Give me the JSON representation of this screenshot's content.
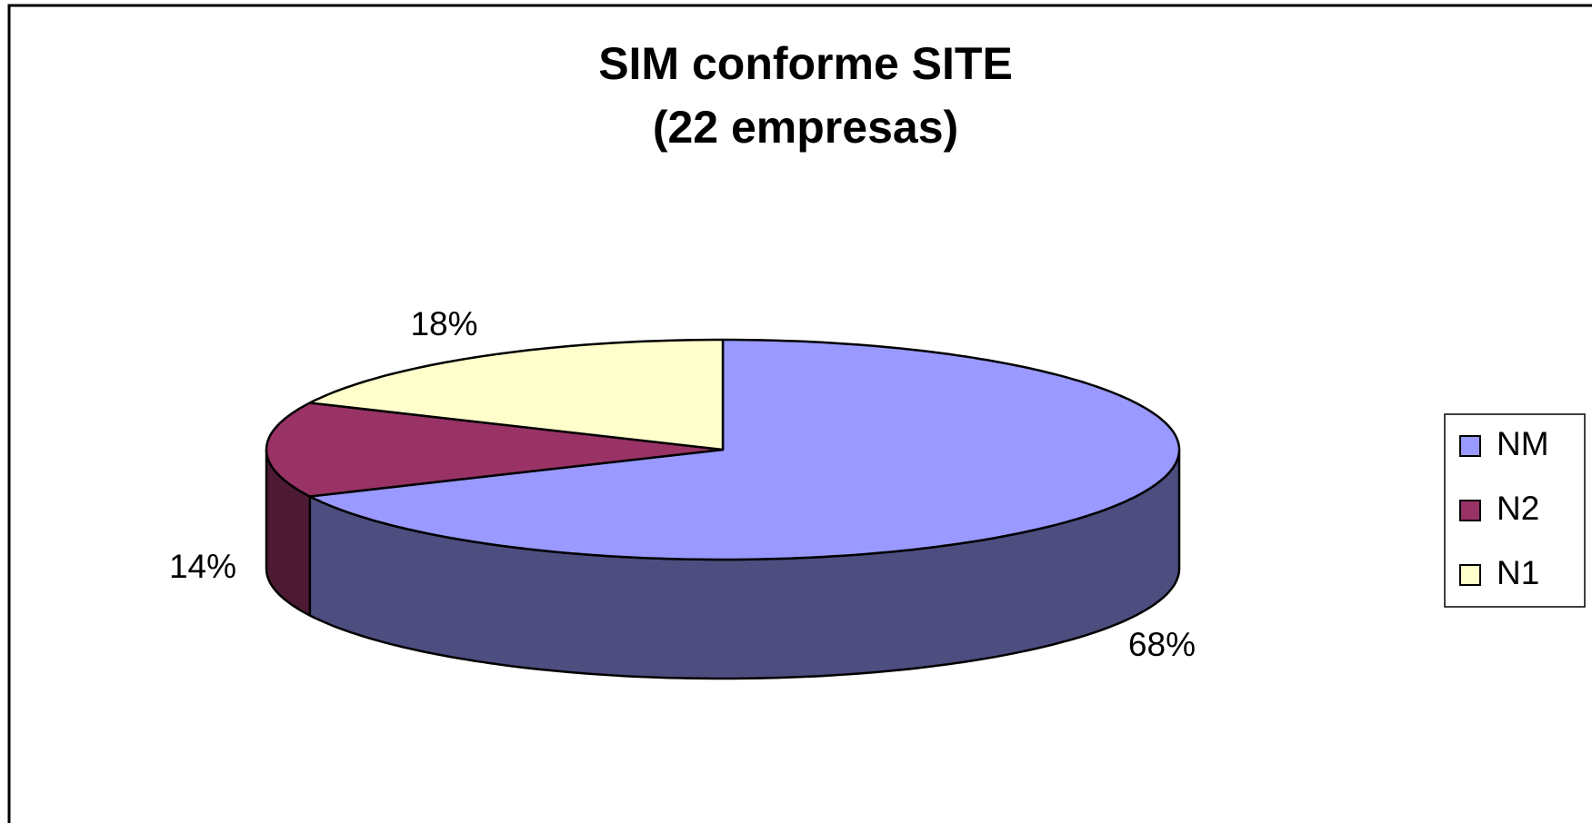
{
  "chart_data": {
    "type": "pie3d",
    "title": "SIM conforme SITE",
    "subtitle": "(22 empresas)",
    "categories": [
      "NM",
      "N2",
      "N1"
    ],
    "values": [
      68,
      14,
      18
    ],
    "value_labels": [
      "68%",
      "14%",
      "18%"
    ],
    "colors": [
      "#9999ff",
      "#993366",
      "#ffffcc"
    ],
    "legend": "right"
  }
}
